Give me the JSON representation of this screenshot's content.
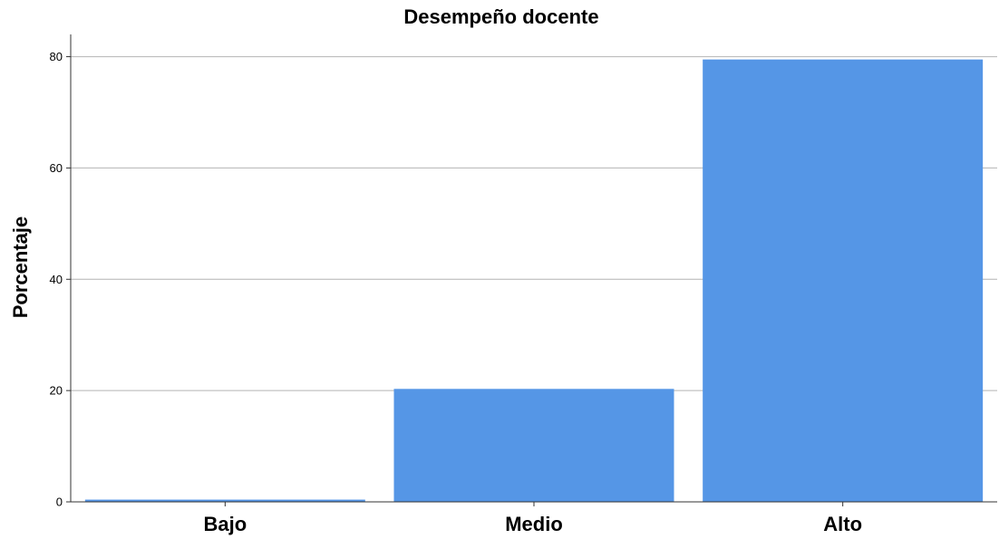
{
  "chart_data": {
    "type": "bar",
    "title": "Desempeño docente",
    "xlabel": "",
    "ylabel": "Porcentaje",
    "categories": [
      "Bajo",
      "Medio",
      "Alto"
    ],
    "values": [
      0.4,
      20.3,
      79.5
    ],
    "ylim": [
      0,
      84
    ],
    "yticks": [
      0,
      20,
      40,
      60,
      80
    ],
    "grid": true,
    "bar_color": "#5596e6"
  }
}
